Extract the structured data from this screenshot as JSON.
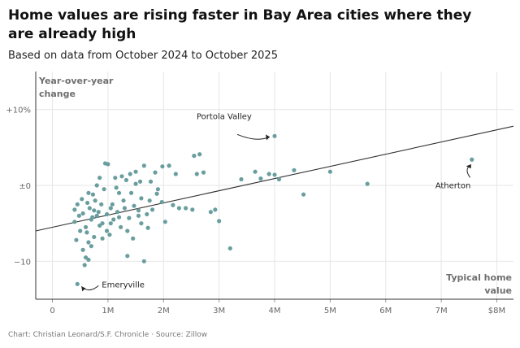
{
  "header": {
    "title": "Home values are rising faster in Bay Area cities where they are already high",
    "subtitle": "Based on data from October 2024 to October 2025"
  },
  "footer": {
    "credit": "Chart: Christian Leonard/S.F. Chronicle · Source: Zillow"
  },
  "colors": {
    "points": "#6a9e9e",
    "trendline": "#333333",
    "grid": "#e6e6e6",
    "axis": "#333333"
  },
  "chart_data": {
    "type": "scatter",
    "title": "Home values are rising faster in Bay Area cities where they are already high",
    "subtitle": "Based on data from October 2024 to October 2025",
    "xlabel": [
      "Typical home",
      "value"
    ],
    "ylabel": [
      "Year-over-year",
      "change"
    ],
    "xlim": [
      -0.3,
      8.3
    ],
    "ylim": [
      -15,
      15
    ],
    "grid": true,
    "x_ticks": [
      {
        "value": 0,
        "label": "0"
      },
      {
        "value": 1,
        "label": "1M"
      },
      {
        "value": 2,
        "label": "2M"
      },
      {
        "value": 3,
        "label": "3M"
      },
      {
        "value": 4,
        "label": "4M"
      },
      {
        "value": 5,
        "label": "5M"
      },
      {
        "value": 6,
        "label": "6M"
      },
      {
        "value": 7,
        "label": "7M"
      },
      {
        "value": 8,
        "label": "$8M"
      }
    ],
    "y_ticks": [
      {
        "value": 10,
        "label": "+10%"
      },
      {
        "value": 0,
        "label": "±0"
      },
      {
        "value": -10,
        "label": "−10"
      }
    ],
    "trendline": {
      "x": [
        -0.3,
        8.3
      ],
      "y": [
        -6.0,
        7.8
      ]
    },
    "annotations": [
      {
        "label": "Portola Valley",
        "x": 4.0,
        "y": 6.5
      },
      {
        "label": "Atherton",
        "x": 7.55,
        "y": 3.4
      },
      {
        "label": "Emeryville",
        "x": 0.45,
        "y": -13.0
      }
    ],
    "points": [
      {
        "x": 0.45,
        "y": -13.0
      },
      {
        "x": 4.0,
        "y": 6.5
      },
      {
        "x": 7.55,
        "y": 3.4
      },
      {
        "x": 5.67,
        "y": 0.2
      },
      {
        "x": 5.0,
        "y": 1.8
      },
      {
        "x": 4.52,
        "y": -1.2
      },
      {
        "x": 4.35,
        "y": 2.0
      },
      {
        "x": 4.08,
        "y": 0.8
      },
      {
        "x": 4.0,
        "y": 1.4
      },
      {
        "x": 3.9,
        "y": 1.5
      },
      {
        "x": 3.75,
        "y": 0.9
      },
      {
        "x": 3.65,
        "y": 1.8
      },
      {
        "x": 3.4,
        "y": 0.8
      },
      {
        "x": 3.2,
        "y": -8.3
      },
      {
        "x": 3.0,
        "y": -4.7
      },
      {
        "x": 2.93,
        "y": -3.2
      },
      {
        "x": 2.85,
        "y": -3.5
      },
      {
        "x": 2.72,
        "y": 1.7
      },
      {
        "x": 2.65,
        "y": 4.1
      },
      {
        "x": 2.55,
        "y": 3.9
      },
      {
        "x": 2.52,
        "y": -3.2
      },
      {
        "x": 2.4,
        "y": -3.0
      },
      {
        "x": 2.28,
        "y": -3.0
      },
      {
        "x": 2.22,
        "y": 1.5
      },
      {
        "x": 2.17,
        "y": -2.6
      },
      {
        "x": 2.1,
        "y": 2.6
      },
      {
        "x": 2.03,
        "y": -4.8
      },
      {
        "x": 1.98,
        "y": 2.5
      },
      {
        "x": 1.97,
        "y": -2.2
      },
      {
        "x": 1.88,
        "y": -1.1
      },
      {
        "x": 1.85,
        "y": 1.7
      },
      {
        "x": 1.8,
        "y": -3.2
      },
      {
        "x": 1.77,
        "y": 0.5
      },
      {
        "x": 1.72,
        "y": -5.6
      },
      {
        "x": 1.7,
        "y": -3.8
      },
      {
        "x": 1.65,
        "y": 2.6
      },
      {
        "x": 1.6,
        "y": -1.7
      },
      {
        "x": 1.58,
        "y": 0.5
      },
      {
        "x": 1.55,
        "y": -4.0
      },
      {
        "x": 1.5,
        "y": 1.8
      },
      {
        "x": 1.47,
        "y": -2.7
      },
      {
        "x": 1.45,
        "y": -7.0
      },
      {
        "x": 1.42,
        "y": -1.0
      },
      {
        "x": 1.38,
        "y": -4.3
      },
      {
        "x": 1.33,
        "y": 0.7
      },
      {
        "x": 1.3,
        "y": -3.0
      },
      {
        "x": 1.28,
        "y": -2.0
      },
      {
        "x": 1.23,
        "y": -5.5
      },
      {
        "x": 1.2,
        "y": -1.0
      },
      {
        "x": 1.17,
        "y": -3.5
      },
      {
        "x": 1.13,
        "y": 1.0
      },
      {
        "x": 1.1,
        "y": -4.5
      },
      {
        "x": 1.08,
        "y": -2.5
      },
      {
        "x": 1.03,
        "y": -6.5
      },
      {
        "x": 1.0,
        "y": 2.8
      },
      {
        "x": 0.98,
        "y": -3.8
      },
      {
        "x": 0.93,
        "y": -0.5
      },
      {
        "x": 0.9,
        "y": -5.0
      },
      {
        "x": 0.88,
        "y": -2.5
      },
      {
        "x": 0.85,
        "y": 1.0
      },
      {
        "x": 0.83,
        "y": -3.5
      },
      {
        "x": 0.8,
        "y": -4.0
      },
      {
        "x": 0.77,
        "y": -2.0
      },
      {
        "x": 0.75,
        "y": -6.8
      },
      {
        "x": 0.73,
        "y": -1.2
      },
      {
        "x": 0.7,
        "y": -4.5
      },
      {
        "x": 0.67,
        "y": -3.0
      },
      {
        "x": 0.65,
        "y": -7.5
      },
      {
        "x": 0.63,
        "y": -2.3
      },
      {
        "x": 0.6,
        "y": -5.5
      },
      {
        "x": 0.58,
        "y": -10.5
      },
      {
        "x": 0.55,
        "y": -3.7
      },
      {
        "x": 0.53,
        "y": -1.8
      },
      {
        "x": 0.5,
        "y": -6.0
      },
      {
        "x": 0.48,
        "y": -4.0
      },
      {
        "x": 0.45,
        "y": -2.5
      },
      {
        "x": 0.43,
        "y": -7.2
      },
      {
        "x": 0.4,
        "y": -4.8
      },
      {
        "x": 0.4,
        "y": -3.2
      },
      {
        "x": 0.55,
        "y": -8.5
      },
      {
        "x": 0.6,
        "y": -9.5
      },
      {
        "x": 0.7,
        "y": -8.0
      },
      {
        "x": 0.9,
        "y": -7.0
      },
      {
        "x": 1.05,
        "y": -5.0
      },
      {
        "x": 1.35,
        "y": -6.0
      },
      {
        "x": 1.6,
        "y": -5.0
      },
      {
        "x": 0.95,
        "y": 2.9
      },
      {
        "x": 1.25,
        "y": 1.2
      },
      {
        "x": 1.4,
        "y": 1.5
      },
      {
        "x": 0.8,
        "y": 0.0
      },
      {
        "x": 0.65,
        "y": -1.0
      },
      {
        "x": 1.15,
        "y": -0.3
      },
      {
        "x": 1.5,
        "y": 0.2
      },
      {
        "x": 1.9,
        "y": -0.5
      },
      {
        "x": 2.6,
        "y": 1.5
      },
      {
        "x": 0.75,
        "y": -3.3
      },
      {
        "x": 1.05,
        "y": -3.0
      },
      {
        "x": 1.2,
        "y": -4.2
      },
      {
        "x": 0.85,
        "y": -5.3
      },
      {
        "x": 0.72,
        "y": -4.2
      },
      {
        "x": 1.55,
        "y": -3.3
      },
      {
        "x": 1.75,
        "y": -2.0
      },
      {
        "x": 0.62,
        "y": -6.2
      },
      {
        "x": 0.98,
        "y": -6.0
      },
      {
        "x": 1.65,
        "y": -10.0
      },
      {
        "x": 1.35,
        "y": -9.3
      },
      {
        "x": 0.65,
        "y": -9.8
      }
    ]
  }
}
